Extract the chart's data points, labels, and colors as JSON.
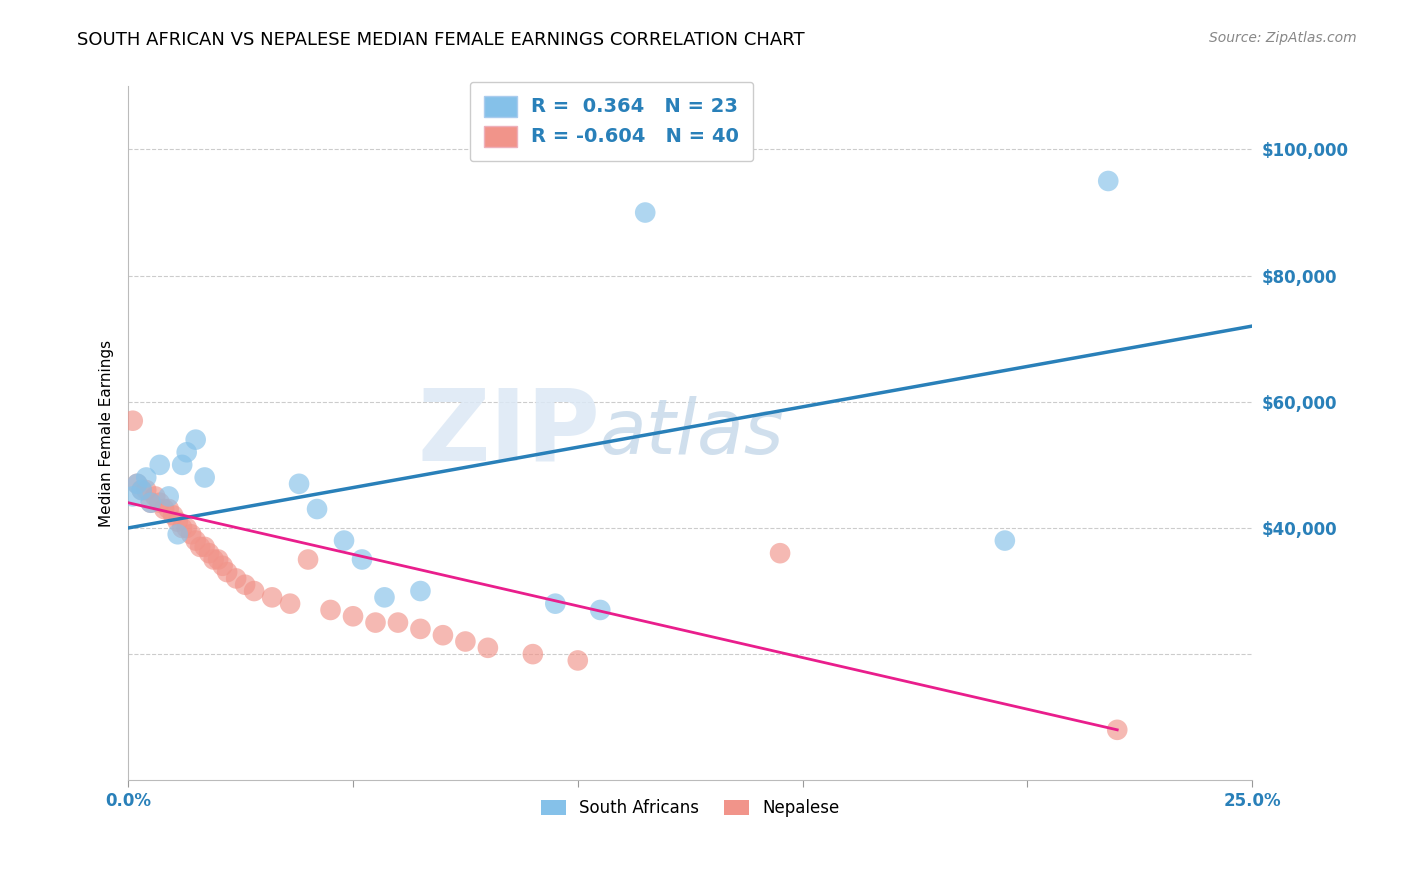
{
  "title": "SOUTH AFRICAN VS NEPALESE MEDIAN FEMALE EARNINGS CORRELATION CHART",
  "source": "Source: ZipAtlas.com",
  "ylabel_label": "Median Female Earnings",
  "watermark_text": "ZIP",
  "watermark_text2": "atlas",
  "xlim": [
    0.0,
    0.25
  ],
  "ylim": [
    0,
    110000
  ],
  "ytick_vals": [
    20000,
    40000,
    60000,
    80000,
    100000
  ],
  "ytick_labels": [
    "",
    "$40,000",
    "$60,000",
    "$80,000",
    "$100,000"
  ],
  "xtick_positions": [
    0.0,
    0.05,
    0.1,
    0.15,
    0.2,
    0.25
  ],
  "xtick_labels": [
    "0.0%",
    "",
    "",
    "",
    "",
    "25.0%"
  ],
  "south_african_color": "#85c1e9",
  "nepalese_color": "#f1948a",
  "blue_line_color": "#2980b9",
  "pink_line_color": "#e91e8c",
  "legend_R_blue": "0.364",
  "legend_N_blue": "23",
  "legend_R_pink": "-0.604",
  "legend_N_pink": "40",
  "south_african_x": [
    0.001,
    0.002,
    0.003,
    0.004,
    0.005,
    0.007,
    0.009,
    0.011,
    0.012,
    0.013,
    0.015,
    0.017,
    0.038,
    0.042,
    0.048,
    0.052,
    0.057,
    0.065,
    0.095,
    0.105,
    0.115,
    0.195,
    0.218
  ],
  "south_african_y": [
    45000,
    47000,
    46000,
    48000,
    44000,
    50000,
    45000,
    39000,
    50000,
    52000,
    54000,
    48000,
    47000,
    43000,
    38000,
    35000,
    29000,
    30000,
    28000,
    27000,
    90000,
    38000,
    95000
  ],
  "nepalese_x": [
    0.001,
    0.002,
    0.003,
    0.004,
    0.005,
    0.006,
    0.007,
    0.008,
    0.009,
    0.01,
    0.011,
    0.012,
    0.013,
    0.014,
    0.015,
    0.016,
    0.017,
    0.018,
    0.019,
    0.02,
    0.021,
    0.022,
    0.024,
    0.026,
    0.028,
    0.032,
    0.036,
    0.04,
    0.045,
    0.05,
    0.055,
    0.06,
    0.065,
    0.07,
    0.075,
    0.08,
    0.09,
    0.1,
    0.145,
    0.22
  ],
  "nepalese_y": [
    57000,
    47000,
    46000,
    46000,
    44000,
    45000,
    44000,
    43000,
    43000,
    42000,
    41000,
    40000,
    40000,
    39000,
    38000,
    37000,
    37000,
    36000,
    35000,
    35000,
    34000,
    33000,
    32000,
    31000,
    30000,
    29000,
    28000,
    35000,
    27000,
    26000,
    25000,
    25000,
    24000,
    23000,
    22000,
    21000,
    20000,
    19000,
    36000,
    8000
  ],
  "blue_line_x": [
    0.0,
    0.25
  ],
  "blue_line_y": [
    40000,
    72000
  ],
  "pink_line_x": [
    0.0,
    0.22
  ],
  "pink_line_y": [
    44000,
    8000
  ],
  "background_color": "#ffffff",
  "grid_color": "#cccccc",
  "title_fontsize": 13,
  "axis_label_fontsize": 11,
  "tick_fontsize": 12,
  "legend_fontsize": 13,
  "source_fontsize": 10,
  "bottom_legend_labels": [
    "South Africans",
    "Nepalese"
  ]
}
